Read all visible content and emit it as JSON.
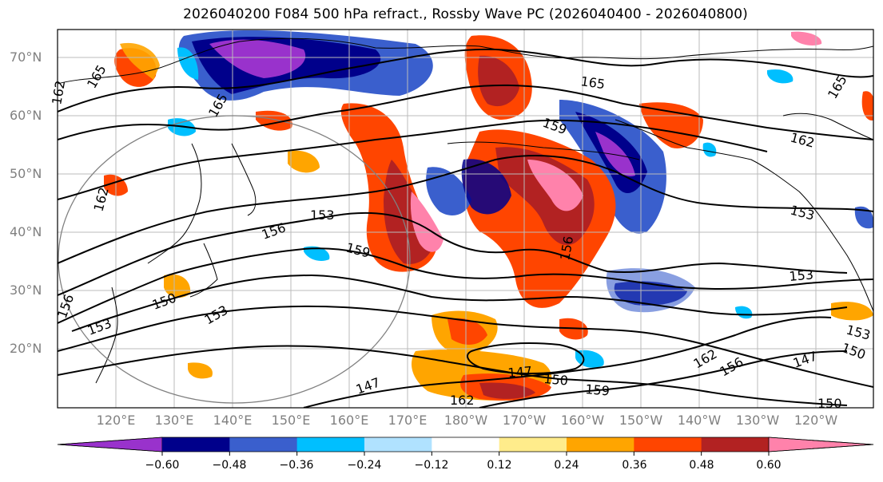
{
  "title": "2026040200 F084 500 hPa refract., Rossby Wave PC (2026040400 - 2026040800)",
  "latitude_labels": [
    "70°N",
    "60°N",
    "50°N",
    "40°N",
    "30°N",
    "20°N"
  ],
  "longitude_labels": [
    "120°E",
    "130°E",
    "140°E",
    "150°E",
    "160°E",
    "170°E",
    "180°W",
    "170°W",
    "160°W",
    "150°W",
    "140°W",
    "130°W",
    "120°W"
  ],
  "contour_labels": [
    "165",
    "162",
    "165",
    "162",
    "165",
    "165",
    "159",
    "162",
    "165",
    "153",
    "156",
    "159",
    "156",
    "153",
    "153",
    "156",
    "150",
    "153",
    "153",
    "147",
    "150",
    "159",
    "162",
    "156",
    "147",
    "162",
    "156",
    "150",
    "147",
    "153",
    "159",
    "150"
  ],
  "colorbar": {
    "colors": [
      "#9932cc",
      "#00008b",
      "#3a5fcd",
      "#00bfff",
      "#b0e2ff",
      "#ffffff",
      "#ffec8b",
      "#ffa500",
      "#ff4500",
      "#b22222",
      "#ff82ab"
    ],
    "tick_labels": [
      "−0.60",
      "−0.48",
      "−0.36",
      "−0.24",
      "−0.12",
      "0.12",
      "0.24",
      "0.36",
      "0.48",
      "0.60"
    ]
  }
}
